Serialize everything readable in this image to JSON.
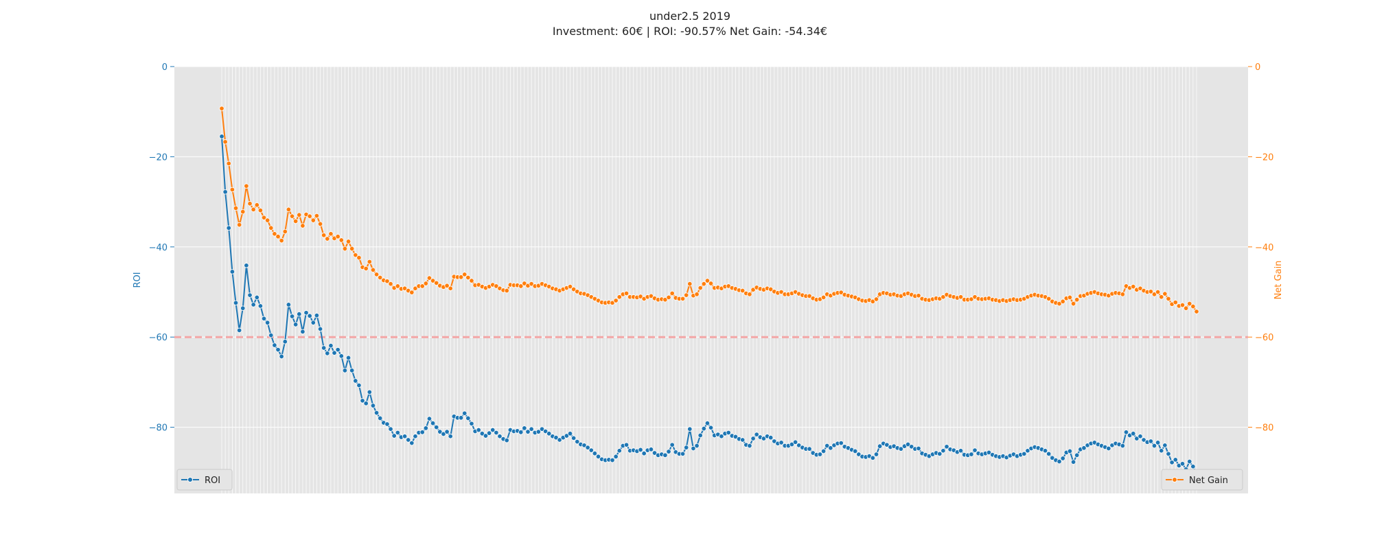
{
  "chart_data": {
    "type": "line",
    "title": "under2.5 2019",
    "subtitle": "Investment: 60€ | ROI: -90.57% Net Gain: -54.34€",
    "y_left_label": "ROI",
    "y_right_label": "Net Gain",
    "ylim": [
      -94,
      0
    ],
    "y_ticks": [
      0,
      -20,
      -40,
      -60,
      -80
    ],
    "reference_line": {
      "y": -60,
      "color": "#f4a6a6",
      "style": "dashed"
    },
    "grid": true,
    "background": "#e5e5e5",
    "colors": {
      "roi": "#1f77b4",
      "net_gain": "#ff7f0e",
      "tick_left": "#1f77b4",
      "tick_right": "#ff7f0e"
    },
    "legend": [
      {
        "label": "ROI",
        "placement": "bottom-left"
      },
      {
        "label": "Net Gain",
        "placement": "bottom-right"
      }
    ],
    "series": [
      {
        "name": "ROI",
        "values": [
          -15.5,
          -27.8,
          -35.8,
          -45.5,
          -52.4,
          -58.5,
          -53.6,
          -44.1,
          -50.7,
          -52.8,
          -51.2,
          -53.1,
          -55.9,
          -56.8,
          -59.6,
          -61.8,
          -62.8,
          -64.3,
          -61.0,
          -52.8,
          -55.4,
          -57.2,
          -54.9,
          -58.8,
          -54.6,
          -55.3,
          -56.8,
          -55.2,
          -58.2,
          -62.4,
          -63.6,
          -61.9,
          -63.5,
          -62.8,
          -64.2,
          -67.4,
          -64.6,
          -67.4,
          -69.7,
          -70.7,
          -74.1,
          -74.7,
          -72.2,
          -75.2,
          -76.8,
          -78.0,
          -79.0,
          -79.3,
          -80.4,
          -81.9,
          -81.2,
          -82.2,
          -82.0,
          -82.8,
          -83.5,
          -82.0,
          -81.2,
          -81.1,
          -80.2,
          -78.1,
          -79.1,
          -80.0,
          -81.0,
          -81.5,
          -81.0,
          -82.0,
          -77.6,
          -77.9,
          -77.9,
          -76.9,
          -78.0,
          -79.2,
          -80.9,
          -80.6,
          -81.4,
          -81.9,
          -81.3,
          -80.6,
          -81.2,
          -82.0,
          -82.6,
          -82.9,
          -80.6,
          -80.9,
          -80.8,
          -81.1,
          -80.2,
          -81.0,
          -80.4,
          -81.2,
          -81.0,
          -80.4,
          -80.9,
          -81.4,
          -82.0,
          -82.3,
          -82.8,
          -82.3,
          -81.9,
          -81.4,
          -82.4,
          -83.2,
          -83.8,
          -84.0,
          -84.5,
          -85.1,
          -85.8,
          -86.5,
          -87.1,
          -87.3,
          -87.2,
          -87.3,
          -86.5,
          -85.2,
          -84.1,
          -83.9,
          -85.2,
          -85.1,
          -85.3,
          -85.0,
          -85.8,
          -85.1,
          -84.9,
          -85.7,
          -86.2,
          -86.0,
          -86.2,
          -85.4,
          -83.9,
          -85.5,
          -85.9,
          -85.9,
          -84.5,
          -80.4,
          -84.7,
          -84.1,
          -81.8,
          -80.3,
          -79.1,
          -80.1,
          -81.8,
          -81.6,
          -82.0,
          -81.4,
          -81.2,
          -81.9,
          -82.1,
          -82.6,
          -82.8,
          -83.9,
          -84.1,
          -82.5,
          -81.6,
          -82.2,
          -82.5,
          -82.0,
          -82.3,
          -83.1,
          -83.6,
          -83.4,
          -84.1,
          -84.1,
          -83.8,
          -83.3,
          -84.0,
          -84.5,
          -84.8,
          -84.8,
          -85.7,
          -86.1,
          -86.0,
          -85.3,
          -84.1,
          -84.6,
          -84.0,
          -83.6,
          -83.5,
          -84.3,
          -84.6,
          -85.0,
          -85.3,
          -86.0,
          -86.5,
          -86.6,
          -86.4,
          -86.8,
          -86.0,
          -84.2,
          -83.6,
          -83.9,
          -84.4,
          -84.2,
          -84.6,
          -84.8,
          -84.2,
          -83.8,
          -84.3,
          -84.8,
          -84.7,
          -85.8,
          -86.1,
          -86.4,
          -86.0,
          -85.7,
          -85.9,
          -85.2,
          -84.3,
          -84.9,
          -85.1,
          -85.5,
          -85.2,
          -86.1,
          -86.2,
          -86.0,
          -85.1,
          -85.8,
          -86.0,
          -85.8,
          -85.6,
          -86.1,
          -86.4,
          -86.6,
          -86.4,
          -86.7,
          -86.3,
          -86.0,
          -86.4,
          -86.1,
          -85.9,
          -85.2,
          -84.7,
          -84.4,
          -84.6,
          -84.9,
          -85.2,
          -85.9,
          -86.8,
          -87.3,
          -87.6,
          -86.9,
          -85.6,
          -85.3,
          -87.7,
          -86.2,
          -84.9,
          -84.6,
          -84.0,
          -83.6,
          -83.4,
          -83.8,
          -84.1,
          -84.4,
          -84.7,
          -84.0,
          -83.6,
          -83.8,
          -84.1,
          -81.1,
          -81.8,
          -81.4,
          -82.5,
          -82.0,
          -82.8,
          -83.3,
          -83.1,
          -84.1,
          -83.4,
          -85.2,
          -84.0,
          -85.9,
          -87.8,
          -87.2,
          -88.5,
          -88.1,
          -89.3,
          -87.6,
          -88.7,
          -90.57
        ]
      },
      {
        "name": "Net Gain",
        "values": [
          -9.3,
          -16.7,
          -21.5,
          -27.3,
          -31.4,
          -35.1,
          -32.2,
          -26.5,
          -30.4,
          -31.7,
          -30.7,
          -31.9,
          -33.5,
          -34.1,
          -35.8,
          -37.1,
          -37.7,
          -38.6,
          -36.6,
          -31.7,
          -33.2,
          -34.3,
          -32.9,
          -35.3,
          -32.8,
          -33.2,
          -34.1,
          -33.1,
          -34.9,
          -37.4,
          -38.2,
          -37.1,
          -38.1,
          -37.7,
          -38.5,
          -40.4,
          -38.8,
          -40.4,
          -41.8,
          -42.4,
          -44.5,
          -44.8,
          -43.3,
          -45.1,
          -46.1,
          -46.8,
          -47.4,
          -47.6,
          -48.2,
          -49.1,
          -48.7,
          -49.3,
          -49.2,
          -49.7,
          -50.1,
          -49.2,
          -48.7,
          -48.7,
          -48.1,
          -46.9,
          -47.5,
          -48.0,
          -48.6,
          -48.9,
          -48.6,
          -49.2,
          -46.6,
          -46.7,
          -46.7,
          -46.1,
          -46.8,
          -47.5,
          -48.5,
          -48.4,
          -48.8,
          -49.1,
          -48.8,
          -48.4,
          -48.7,
          -49.2,
          -49.6,
          -49.7,
          -48.4,
          -48.5,
          -48.5,
          -48.7,
          -48.1,
          -48.6,
          -48.2,
          -48.7,
          -48.6,
          -48.2,
          -48.5,
          -48.8,
          -49.2,
          -49.4,
          -49.7,
          -49.4,
          -49.1,
          -48.8,
          -49.4,
          -49.9,
          -50.3,
          -50.4,
          -50.7,
          -51.1,
          -51.5,
          -51.9,
          -52.3,
          -52.4,
          -52.3,
          -52.4,
          -51.9,
          -51.1,
          -50.5,
          -50.3,
          -51.1,
          -51.1,
          -51.2,
          -51.0,
          -51.5,
          -51.1,
          -50.9,
          -51.4,
          -51.7,
          -51.6,
          -51.7,
          -51.2,
          -50.3,
          -51.3,
          -51.5,
          -51.5,
          -50.7,
          -48.2,
          -50.8,
          -50.5,
          -49.1,
          -48.2,
          -47.5,
          -48.1,
          -49.1,
          -49.0,
          -49.2,
          -48.8,
          -48.7,
          -49.1,
          -49.3,
          -49.6,
          -49.7,
          -50.3,
          -50.5,
          -49.5,
          -49.0,
          -49.3,
          -49.5,
          -49.2,
          -49.4,
          -49.9,
          -50.2,
          -50.0,
          -50.5,
          -50.5,
          -50.3,
          -50.0,
          -50.4,
          -50.7,
          -50.9,
          -50.9,
          -51.4,
          -51.7,
          -51.6,
          -51.2,
          -50.5,
          -50.8,
          -50.4,
          -50.2,
          -50.1,
          -50.6,
          -50.8,
          -51.0,
          -51.2,
          -51.6,
          -51.9,
          -52.0,
          -51.8,
          -52.1,
          -51.6,
          -50.5,
          -50.2,
          -50.3,
          -50.6,
          -50.5,
          -50.8,
          -50.9,
          -50.5,
          -50.3,
          -50.6,
          -50.9,
          -50.8,
          -51.5,
          -51.7,
          -51.8,
          -51.6,
          -51.4,
          -51.5,
          -51.1,
          -50.6,
          -50.9,
          -51.1,
          -51.3,
          -51.1,
          -51.7,
          -51.7,
          -51.6,
          -51.1,
          -51.5,
          -51.6,
          -51.5,
          -51.4,
          -51.7,
          -51.8,
          -52.0,
          -51.8,
          -52.0,
          -51.8,
          -51.6,
          -51.8,
          -51.7,
          -51.5,
          -51.1,
          -50.8,
          -50.6,
          -50.8,
          -50.9,
          -51.1,
          -51.5,
          -52.1,
          -52.4,
          -52.6,
          -52.1,
          -51.4,
          -51.2,
          -52.6,
          -51.7,
          -50.9,
          -50.8,
          -50.4,
          -50.2,
          -50.0,
          -50.3,
          -50.5,
          -50.6,
          -50.8,
          -50.4,
          -50.2,
          -50.3,
          -50.5,
          -48.7,
          -49.1,
          -48.8,
          -49.5,
          -49.2,
          -49.7,
          -50.0,
          -49.9,
          -50.5,
          -50.0,
          -51.1,
          -50.4,
          -51.5,
          -52.7,
          -52.3,
          -53.1,
          -52.9,
          -53.6,
          -52.6,
          -53.2,
          -54.34
        ]
      }
    ]
  }
}
